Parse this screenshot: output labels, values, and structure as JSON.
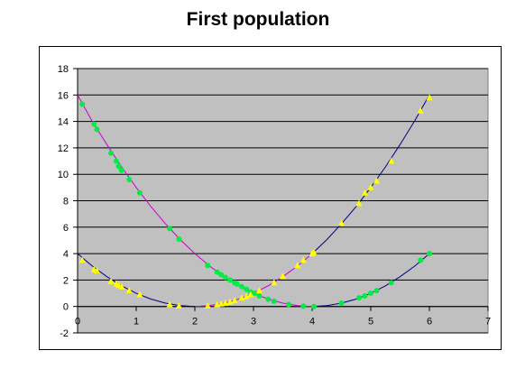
{
  "chart_data": {
    "type": "scatter",
    "title": "First population",
    "xlabel": "",
    "ylabel": "",
    "xlim": [
      0,
      7
    ],
    "ylim": [
      -2,
      18
    ],
    "xticks": [
      0,
      1,
      2,
      3,
      4,
      5,
      6,
      7
    ],
    "yticks": [
      -2,
      0,
      2,
      4,
      6,
      8,
      10,
      12,
      14,
      16,
      18
    ],
    "grid": "horizontal",
    "legend": "none",
    "background": "#c0c0c0",
    "curves": [
      {
        "color": "#cc00cc",
        "points": [
          [
            0,
            16
          ],
          [
            0.25,
            14
          ],
          [
            0.5,
            12.25
          ],
          [
            0.75,
            10.56
          ],
          [
            1,
            9
          ],
          [
            1.25,
            7.56
          ],
          [
            1.5,
            6.25
          ],
          [
            1.75,
            5.06
          ],
          [
            2,
            4
          ],
          [
            2.25,
            3.06
          ],
          [
            2.5,
            2.25
          ],
          [
            2.75,
            1.56
          ],
          [
            3,
            1
          ],
          [
            3.25,
            0.56
          ],
          [
            3.5,
            0.25
          ],
          [
            3.75,
            0.06
          ],
          [
            4,
            0
          ]
        ]
      },
      {
        "color": "#000080",
        "points": [
          [
            4,
            0
          ],
          [
            4.25,
            0.06
          ],
          [
            4.5,
            0.25
          ],
          [
            4.75,
            0.56
          ],
          [
            5,
            1
          ],
          [
            5.25,
            1.56
          ],
          [
            5.5,
            2.25
          ],
          [
            5.75,
            3.06
          ],
          [
            6,
            4
          ]
        ]
      },
      {
        "color": "#000080",
        "points": [
          [
            0,
            4
          ],
          [
            0.25,
            3.06
          ],
          [
            0.5,
            2.25
          ],
          [
            0.75,
            1.56
          ],
          [
            1,
            1
          ],
          [
            1.25,
            0.56
          ],
          [
            1.5,
            0.25
          ],
          [
            1.75,
            0.06
          ],
          [
            2,
            0
          ]
        ]
      },
      {
        "color": "#cc00cc",
        "points": [
          [
            2,
            0
          ],
          [
            2.25,
            0.06
          ],
          [
            2.5,
            0.25
          ],
          [
            2.75,
            0.56
          ],
          [
            3,
            1
          ],
          [
            3.25,
            1.56
          ],
          [
            3.5,
            2.25
          ],
          [
            3.75,
            3.06
          ],
          [
            4,
            4
          ]
        ]
      },
      {
        "color": "#000080",
        "points": [
          [
            4,
            4
          ],
          [
            4.25,
            5.06
          ],
          [
            4.5,
            6.25
          ],
          [
            4.75,
            7.56
          ],
          [
            5,
            9
          ],
          [
            5.25,
            10.56
          ],
          [
            5.5,
            12.25
          ],
          [
            5.75,
            14.06
          ],
          [
            6,
            16
          ]
        ]
      }
    ],
    "series": [
      {
        "color": "#00ee44",
        "marker": "circle",
        "points": [
          [
            0.08,
            15.3
          ],
          [
            0.28,
            13.8
          ],
          [
            0.33,
            13.4
          ],
          [
            0.57,
            11.6
          ],
          [
            0.66,
            11.0
          ],
          [
            0.7,
            10.6
          ],
          [
            0.75,
            10.3
          ],
          [
            0.88,
            9.6
          ],
          [
            1.06,
            8.6
          ],
          [
            1.57,
            5.9
          ],
          [
            1.73,
            5.1
          ],
          [
            2.22,
            3.1
          ],
          [
            2.38,
            2.6
          ],
          [
            2.45,
            2.4
          ],
          [
            2.52,
            2.2
          ],
          [
            2.6,
            2.0
          ],
          [
            2.68,
            1.8
          ],
          [
            2.72,
            1.7
          ],
          [
            2.8,
            1.5
          ],
          [
            2.88,
            1.3
          ],
          [
            2.95,
            1.1
          ],
          [
            3.02,
            1.0
          ],
          [
            3.1,
            0.8
          ],
          [
            3.25,
            0.55
          ],
          [
            3.35,
            0.4
          ],
          [
            3.6,
            0.15
          ],
          [
            3.85,
            0.02
          ],
          [
            4.03,
            0.0
          ],
          [
            4.5,
            0.25
          ],
          [
            4.8,
            0.65
          ],
          [
            4.9,
            0.8
          ],
          [
            5.0,
            1.0
          ],
          [
            5.1,
            1.2
          ],
          [
            5.35,
            1.8
          ],
          [
            5.85,
            3.5
          ],
          [
            6.0,
            4.0
          ]
        ]
      },
      {
        "color": "#ffff00",
        "marker": "triangle",
        "points": [
          [
            0.08,
            3.5
          ],
          [
            0.28,
            2.8
          ],
          [
            0.33,
            2.7
          ],
          [
            0.57,
            1.9
          ],
          [
            0.66,
            1.7
          ],
          [
            0.7,
            1.6
          ],
          [
            0.75,
            1.5
          ],
          [
            0.88,
            1.2
          ],
          [
            1.06,
            0.9
          ],
          [
            1.57,
            0.15
          ],
          [
            1.73,
            0.05
          ],
          [
            2.22,
            0.05
          ],
          [
            2.38,
            0.15
          ],
          [
            2.45,
            0.2
          ],
          [
            2.52,
            0.25
          ],
          [
            2.6,
            0.35
          ],
          [
            2.68,
            0.45
          ],
          [
            2.8,
            0.65
          ],
          [
            2.88,
            0.75
          ],
          [
            2.95,
            0.9
          ],
          [
            3.1,
            1.2
          ],
          [
            3.35,
            1.8
          ],
          [
            3.5,
            2.3
          ],
          [
            3.75,
            3.1
          ],
          [
            3.85,
            3.5
          ],
          [
            4.0,
            4.0
          ],
          [
            4.03,
            4.1
          ],
          [
            4.5,
            6.3
          ],
          [
            4.8,
            7.8
          ],
          [
            4.9,
            8.6
          ],
          [
            5.0,
            9.0
          ],
          [
            5.1,
            9.5
          ],
          [
            5.35,
            11.0
          ],
          [
            5.85,
            14.8
          ],
          [
            6.0,
            15.8
          ]
        ]
      }
    ]
  }
}
